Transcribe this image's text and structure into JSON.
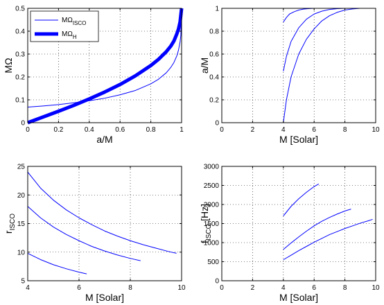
{
  "figure": {
    "background": "#ffffff",
    "line_color": "#0000ff",
    "axis_color": "#000000",
    "grid_color": "#000000"
  },
  "chart_data": [
    {
      "type": "line",
      "xlabel": "a/M",
      "ylabel": "MΩ",
      "xlim": [
        0,
        1
      ],
      "ylim": [
        0,
        0.5
      ],
      "xticks": [
        0,
        0.2,
        0.4,
        0.6,
        0.8,
        1
      ],
      "yticks": [
        0,
        0.1,
        0.2,
        0.3,
        0.4,
        0.5
      ],
      "xtick_labels": [
        "0",
        "0.2",
        "0.4",
        "0.6",
        "0.8",
        "1"
      ],
      "ytick_labels": [
        "0",
        "0.1",
        "0.2",
        "0.3",
        "0.4",
        "0.5"
      ],
      "grid": true,
      "legend_position": "top-left",
      "legend": [
        {
          "base": "MΩ",
          "sub": "ISCO",
          "width": "thin"
        },
        {
          "base": "MΩ",
          "sub": "H",
          "width": "thick"
        }
      ],
      "series": [
        {
          "name": "MΩ_ISCO",
          "width": "thin",
          "x": [
            0,
            0.1,
            0.2,
            0.3,
            0.4,
            0.5,
            0.6,
            0.7,
            0.8,
            0.85,
            0.9,
            0.93,
            0.95,
            0.97,
            0.98,
            0.99,
            0.995,
            1
          ],
          "y": [
            0.068,
            0.073,
            0.079,
            0.087,
            0.096,
            0.107,
            0.122,
            0.141,
            0.17,
            0.19,
            0.218,
            0.242,
            0.263,
            0.294,
            0.318,
            0.353,
            0.382,
            0.5
          ]
        },
        {
          "name": "MΩ_H",
          "width": "thick",
          "x": [
            0,
            0.1,
            0.2,
            0.3,
            0.4,
            0.5,
            0.6,
            0.7,
            0.8,
            0.85,
            0.9,
            0.93,
            0.95,
            0.97,
            0.98,
            0.99,
            1
          ],
          "y": [
            0,
            0.025,
            0.05,
            0.076,
            0.104,
            0.134,
            0.167,
            0.205,
            0.25,
            0.277,
            0.31,
            0.335,
            0.357,
            0.39,
            0.41,
            0.44,
            0.5
          ]
        }
      ]
    },
    {
      "type": "line",
      "xlabel": "M [Solar]",
      "ylabel": "a/M",
      "xlim": [
        0,
        10
      ],
      "ylim": [
        0,
        1
      ],
      "xticks": [
        0,
        2,
        4,
        6,
        8,
        10
      ],
      "yticks": [
        0,
        0.2,
        0.4,
        0.6,
        0.8,
        1
      ],
      "xtick_labels": [
        "0",
        "2",
        "4",
        "6",
        "8",
        "10"
      ],
      "ytick_labels": [
        "0",
        "0.2",
        "0.4",
        "0.6",
        "0.8",
        "1"
      ],
      "grid": true,
      "series": [
        {
          "x": [
            4,
            4.2,
            4.4,
            4.7,
            5.0,
            5.3,
            5.6,
            6.0,
            6.3
          ],
          "y": [
            0.88,
            0.92,
            0.95,
            0.97,
            0.985,
            0.993,
            0.997,
            1.0,
            1.0
          ]
        },
        {
          "x": [
            4,
            4.2,
            4.5,
            5.0,
            5.5,
            6.0,
            6.5,
            7.0,
            7.5,
            8.0,
            8.4
          ],
          "y": [
            0.45,
            0.58,
            0.71,
            0.83,
            0.905,
            0.95,
            0.975,
            0.99,
            0.997,
            1.0,
            1.0
          ]
        },
        {
          "x": [
            4,
            4.2,
            4.5,
            5.0,
            5.5,
            6.0,
            6.5,
            7.0,
            7.5,
            8.0,
            8.5,
            9.0,
            9.8
          ],
          "y": [
            0.0,
            0.2,
            0.4,
            0.6,
            0.73,
            0.82,
            0.89,
            0.935,
            0.965,
            0.985,
            0.995,
            1.0,
            1.0
          ]
        }
      ]
    },
    {
      "type": "line",
      "xlabel": "M [Solar]",
      "ylabel": "r",
      "ylabel_sub": "ISCO",
      "xlim": [
        4,
        10
      ],
      "ylim": [
        5,
        25
      ],
      "xticks": [
        4,
        6,
        8,
        10
      ],
      "yticks": [
        5,
        10,
        15,
        20,
        25
      ],
      "xtick_labels": [
        "4",
        "6",
        "8",
        "10"
      ],
      "ytick_labels": [
        "5",
        "10",
        "15",
        "20",
        "25"
      ],
      "grid": true,
      "series": [
        {
          "x": [
            4,
            4.5,
            5,
            5.5,
            6,
            6.3
          ],
          "y": [
            9.8,
            8.7,
            7.8,
            7.1,
            6.5,
            6.2
          ]
        },
        {
          "x": [
            4,
            4.5,
            5,
            5.5,
            6,
            6.5,
            7,
            7.5,
            8,
            8.4
          ],
          "y": [
            18.0,
            16.0,
            14.4,
            13.1,
            12.0,
            11.0,
            10.2,
            9.5,
            8.9,
            8.5
          ]
        },
        {
          "x": [
            4,
            4.5,
            5,
            5.5,
            6,
            6.5,
            7,
            7.5,
            8,
            8.5,
            9,
            9.5,
            9.8
          ],
          "y": [
            24.0,
            21.2,
            19.1,
            17.4,
            16.0,
            14.8,
            13.7,
            12.8,
            12.0,
            11.3,
            10.7,
            10.1,
            9.8
          ]
        }
      ]
    },
    {
      "type": "line",
      "xlabel": "M [Solar]",
      "ylabel": "f",
      "ylabel_sub": "ISCO",
      "ylabel_suffix": " [Hz]",
      "xlim": [
        0,
        10
      ],
      "ylim": [
        0,
        3000
      ],
      "xticks": [
        0,
        2,
        4,
        6,
        8,
        10
      ],
      "yticks": [
        0,
        500,
        1000,
        1500,
        2000,
        2500,
        3000
      ],
      "xtick_labels": [
        "0",
        "2",
        "4",
        "6",
        "8",
        "10"
      ],
      "ytick_labels": [
        "0",
        "500",
        "1000",
        "1500",
        "2000",
        "2500",
        "3000"
      ],
      "grid": true,
      "series": [
        {
          "x": [
            4,
            4.5,
            5,
            5.5,
            6,
            6.3
          ],
          "y": [
            1700,
            1950,
            2150,
            2320,
            2470,
            2540
          ]
        },
        {
          "x": [
            4,
            4.5,
            5,
            5.5,
            6,
            6.5,
            7,
            7.5,
            8,
            8.4
          ],
          "y": [
            820,
            990,
            1150,
            1300,
            1440,
            1560,
            1660,
            1750,
            1830,
            1880
          ]
        },
        {
          "x": [
            4,
            4.5,
            5,
            5.5,
            6,
            6.5,
            7,
            7.5,
            8,
            8.5,
            9,
            9.5,
            9.8
          ],
          "y": [
            550,
            670,
            790,
            900,
            1010,
            1110,
            1210,
            1290,
            1370,
            1440,
            1510,
            1570,
            1610
          ]
        }
      ]
    }
  ]
}
